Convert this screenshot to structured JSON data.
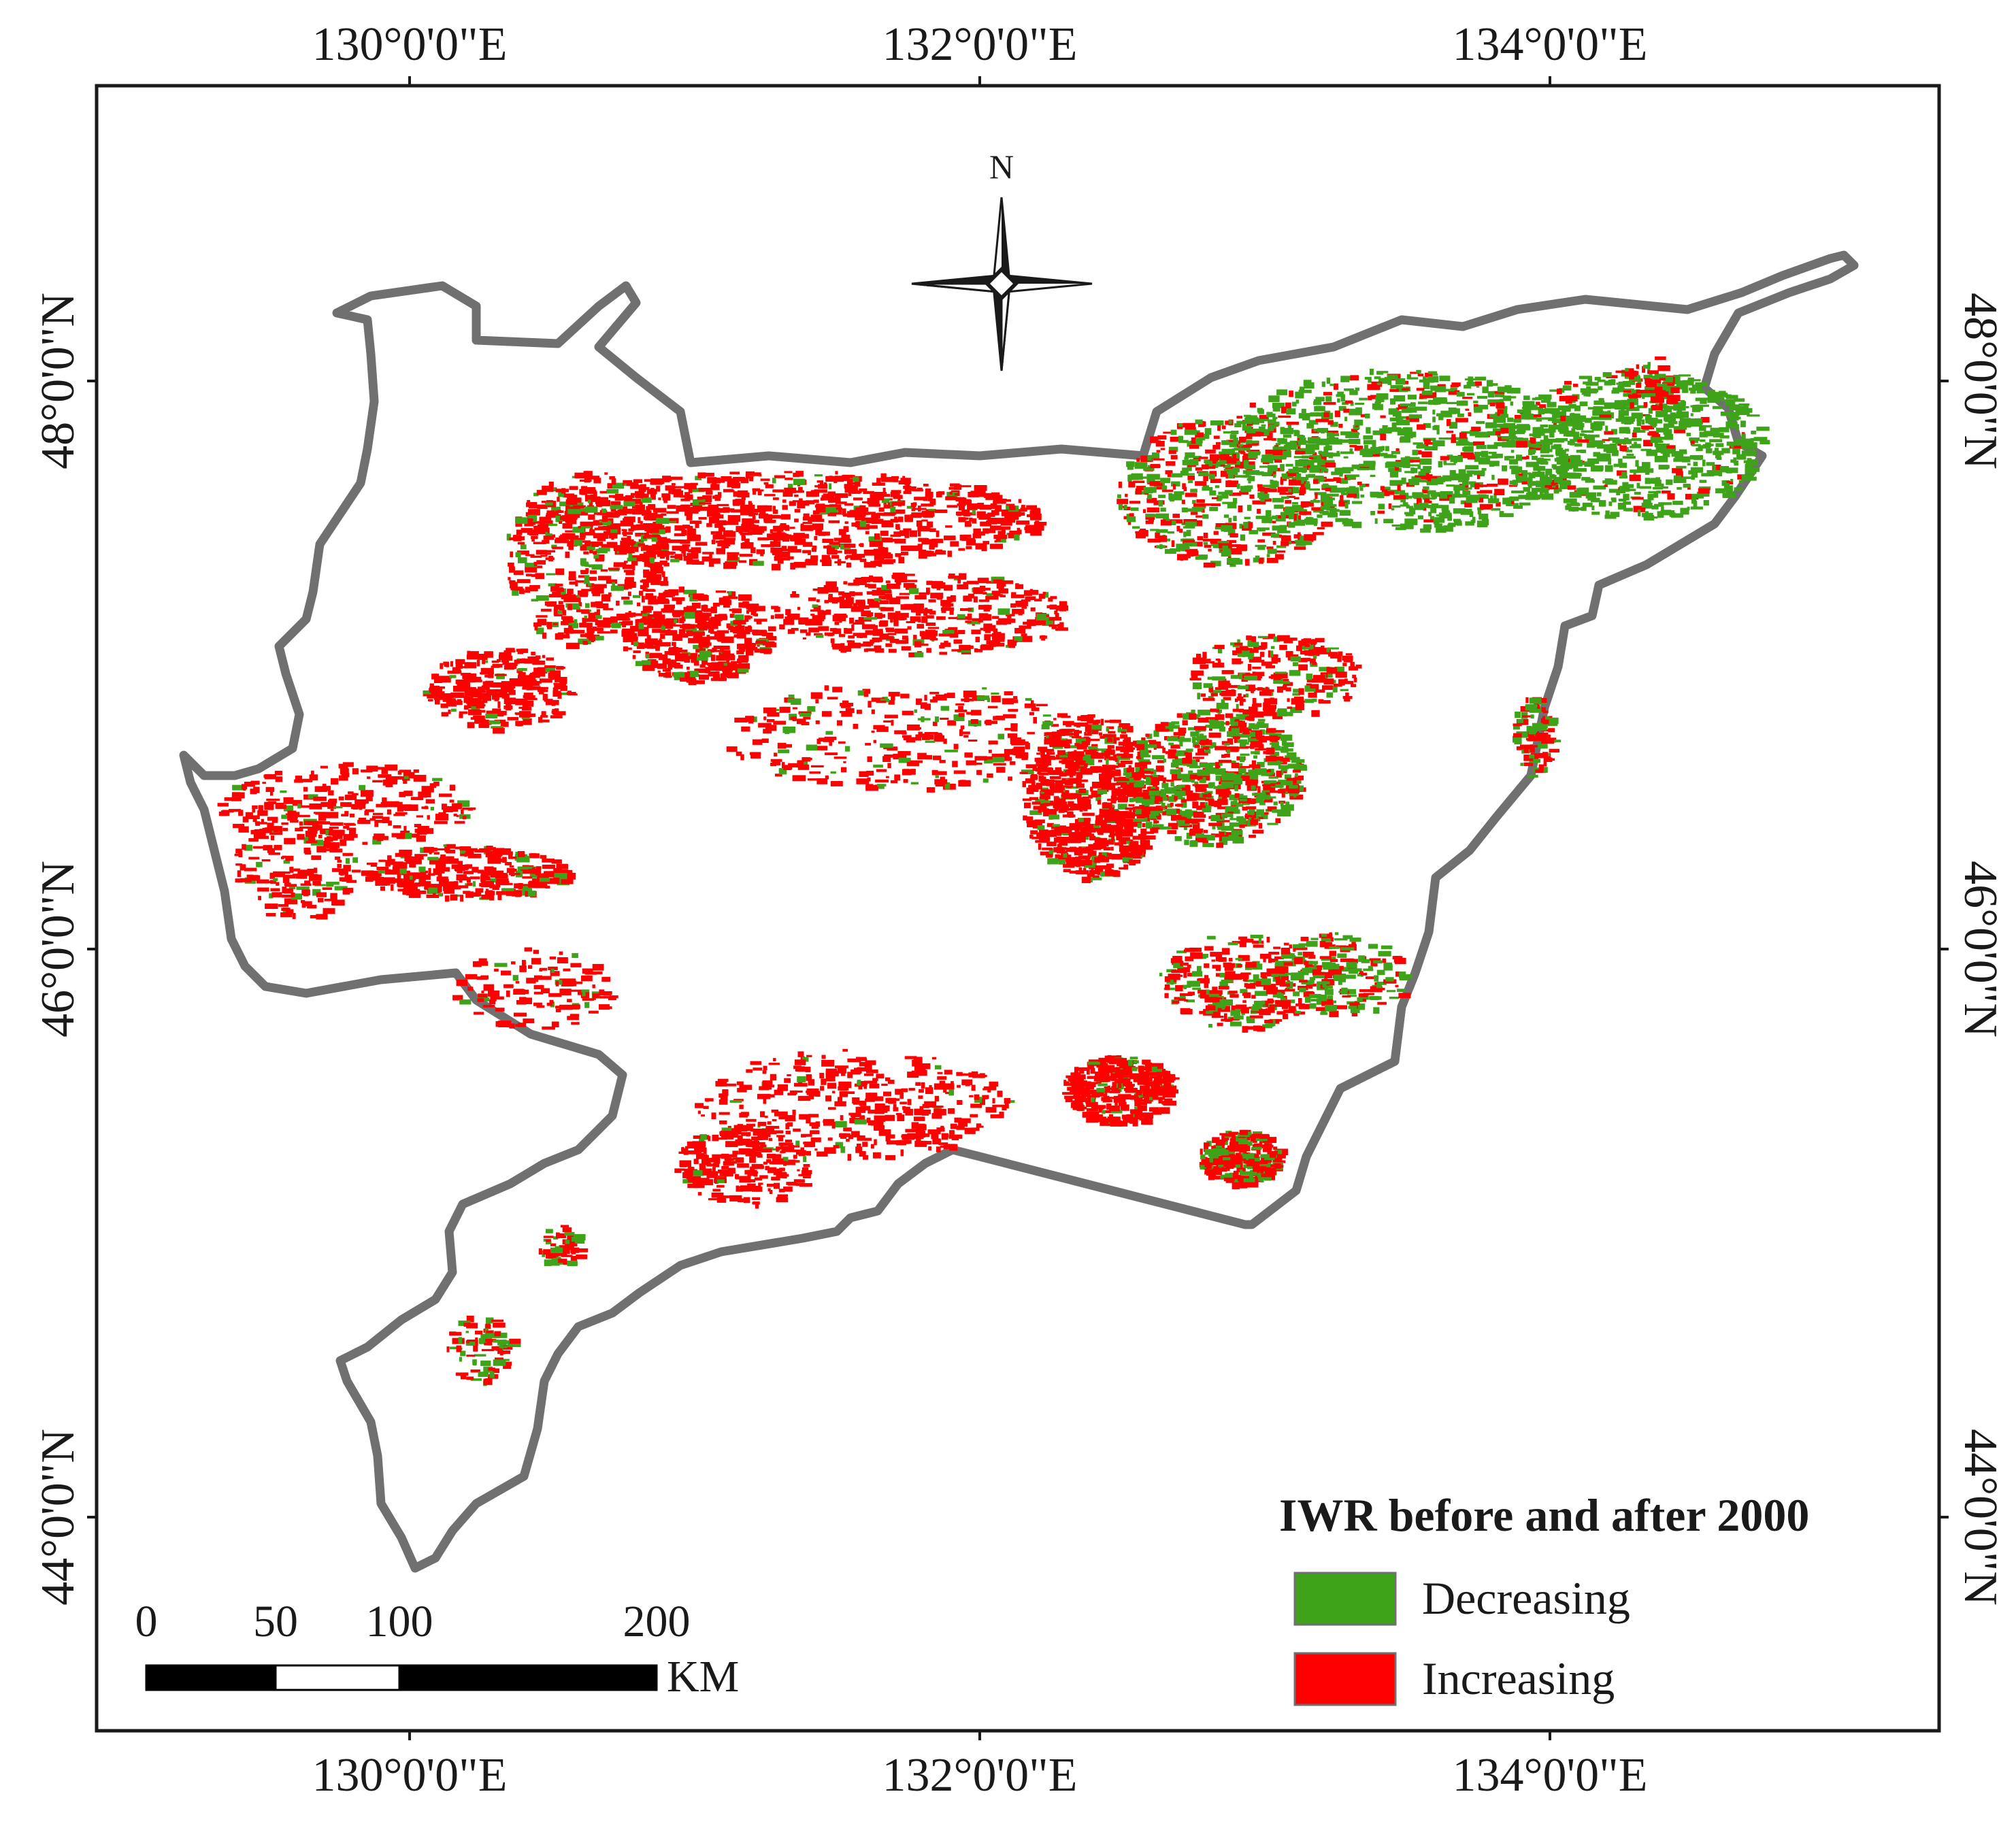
{
  "axes": {
    "top_lon": [
      "130°0'0\"E",
      "132°0'0\"E",
      "134°0'0\"E"
    ],
    "bottom_lon": [
      "130°0'0\"E",
      "132°0'0\"E",
      "134°0'0\"E"
    ],
    "left_lat": [
      "48°0'0\"N",
      "46°0'0\"N",
      "44°0'0\"N"
    ],
    "right_lat": [
      "48°0'0\"N",
      "46°0'0\"N",
      "44°0'0\"N"
    ]
  },
  "north_arrow": {
    "label": "N",
    "icon": "north-arrow-compass-icon"
  },
  "scale_bar": {
    "ticks": [
      "0",
      "50",
      "100",
      "200"
    ],
    "unit": "KM"
  },
  "legend": {
    "title": "IWR before and after 2000",
    "items": [
      {
        "label": "Decreasing",
        "color": "#3fa31a"
      },
      {
        "label": "Increasing",
        "color": "#ff0000"
      }
    ]
  },
  "colors": {
    "boundary": "#707070",
    "frame": "#1a1a1a"
  }
}
